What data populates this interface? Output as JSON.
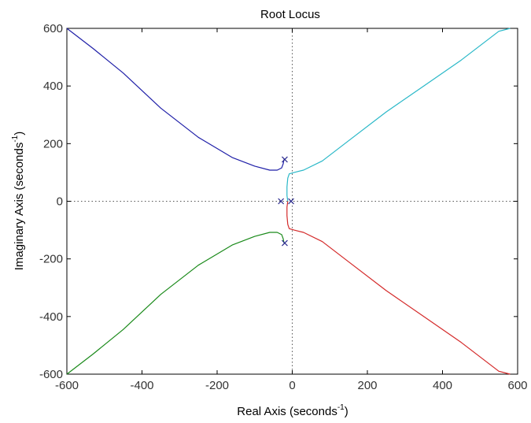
{
  "chart_data": {
    "type": "line",
    "title": "Root Locus",
    "xlabel": "Real Axis (seconds",
    "ylabel": "Imaginary Axis (seconds",
    "axis_label_unit_exponent": "-1",
    "axis_label_suffix": ")",
    "xlim": [
      -600,
      600
    ],
    "ylim": [
      -600,
      600
    ],
    "xticks": [
      -600,
      -400,
      -200,
      0,
      200,
      400,
      600
    ],
    "yticks": [
      -600,
      -400,
      -200,
      0,
      200,
      400,
      600
    ],
    "xtick_labels": [
      "-600",
      "-400",
      "-200",
      "0",
      "200",
      "400",
      "600"
    ],
    "ytick_labels": [
      "-600",
      "-400",
      "-200",
      "0",
      "200",
      "400",
      "600"
    ],
    "grid": false,
    "zero_lines": "dotted",
    "series": [
      {
        "color": "#1f1fa8",
        "points": [
          [
            -22,
            145
          ],
          [
            -24,
            130
          ],
          [
            -28,
            116
          ],
          [
            -40,
            108
          ],
          [
            -60,
            108
          ],
          [
            -100,
            122
          ],
          [
            -160,
            152
          ],
          [
            -250,
            222
          ],
          [
            -350,
            323
          ],
          [
            -450,
            445
          ],
          [
            -530,
            530
          ],
          [
            -600,
            600
          ]
        ]
      },
      {
        "color": "#2ab8c8",
        "points": [
          [
            -12,
            0
          ],
          [
            -14,
            20
          ],
          [
            -14,
            50
          ],
          [
            -12,
            80
          ],
          [
            -8,
            95
          ],
          [
            5,
            100
          ],
          [
            30,
            108
          ],
          [
            80,
            140
          ],
          [
            150,
            210
          ],
          [
            250,
            310
          ],
          [
            350,
            400
          ],
          [
            450,
            490
          ],
          [
            550,
            590
          ],
          [
            580,
            620
          ]
        ]
      },
      {
        "color": "#1a8a1a",
        "points": [
          [
            -22,
            -145
          ],
          [
            -24,
            -130
          ],
          [
            -28,
            -116
          ],
          [
            -40,
            -108
          ],
          [
            -60,
            -108
          ],
          [
            -100,
            -122
          ],
          [
            -160,
            -152
          ],
          [
            -250,
            -222
          ],
          [
            -350,
            -323
          ],
          [
            -450,
            -445
          ],
          [
            -530,
            -530
          ],
          [
            -600,
            -600
          ]
        ]
      },
      {
        "color": "#d42a2a",
        "points": [
          [
            -12,
            0
          ],
          [
            -14,
            -20
          ],
          [
            -14,
            -50
          ],
          [
            -12,
            -80
          ],
          [
            -8,
            -95
          ],
          [
            5,
            -100
          ],
          [
            30,
            -108
          ],
          [
            80,
            -140
          ],
          [
            150,
            -210
          ],
          [
            250,
            -310
          ],
          [
            350,
            -400
          ],
          [
            450,
            -490
          ],
          [
            550,
            -590
          ],
          [
            580,
            -620
          ]
        ]
      }
    ],
    "poles": [
      {
        "x": -20,
        "y": 145
      },
      {
        "x": -20,
        "y": -145
      },
      {
        "x": -30,
        "y": 0
      },
      {
        "x": -3,
        "y": 0
      }
    ],
    "pole_color": "#2b2b8f"
  }
}
